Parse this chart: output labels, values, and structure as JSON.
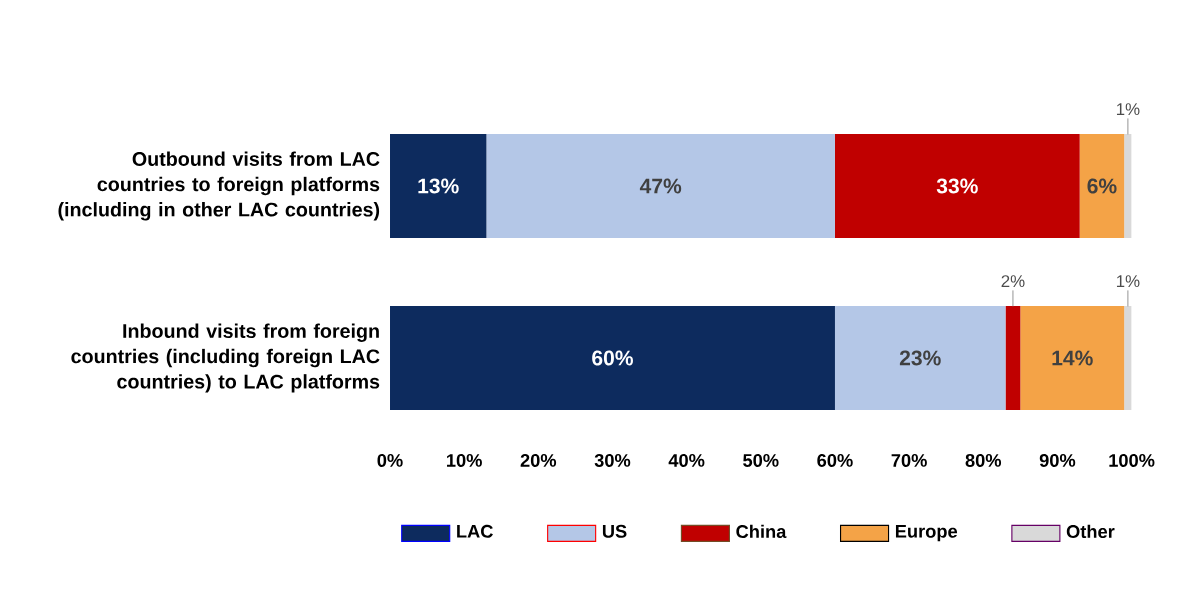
{
  "chart_data": {
    "type": "bar",
    "orientation": "horizontal",
    "stacked": true,
    "categories": [
      "Outbound visits from LAC countries to foreign platforms (including in other LAC countries)",
      "Inbound visits from foreign countries (including foreign LAC countries) to LAC platforms"
    ],
    "series": [
      {
        "name": "LAC",
        "color": "#0d2b5e",
        "values": [
          13,
          60
        ],
        "value_labels": [
          "13%",
          "60%"
        ]
      },
      {
        "name": "US",
        "color": "#b4c7e7",
        "values": [
          47,
          23
        ],
        "value_labels": [
          "47%",
          "23%"
        ]
      },
      {
        "name": "China",
        "color": "#c00000",
        "values": [
          33,
          2
        ],
        "value_labels": [
          "33%",
          "2%"
        ]
      },
      {
        "name": "Europe",
        "color": "#f4a347",
        "values": [
          6,
          14
        ],
        "value_labels": [
          "6%",
          "14%"
        ]
      },
      {
        "name": "Other",
        "color": "#d9d9d9",
        "values": [
          1,
          1
        ],
        "value_labels": [
          "1%",
          "1%"
        ]
      }
    ],
    "xlim": [
      0,
      100
    ],
    "xticks": [
      {
        "value": 0,
        "label": "0%"
      },
      {
        "value": 10,
        "label": "10%"
      },
      {
        "value": 20,
        "label": "20%"
      },
      {
        "value": 30,
        "label": "30%"
      },
      {
        "value": 40,
        "label": "40%"
      },
      {
        "value": 50,
        "label": "50%"
      },
      {
        "value": 60,
        "label": "60%"
      },
      {
        "value": 70,
        "label": "70%"
      },
      {
        "value": 80,
        "label": "80%"
      },
      {
        "value": 90,
        "label": "90%"
      },
      {
        "value": 100,
        "label": "100%"
      }
    ],
    "legend": "bottom",
    "grid": false
  }
}
